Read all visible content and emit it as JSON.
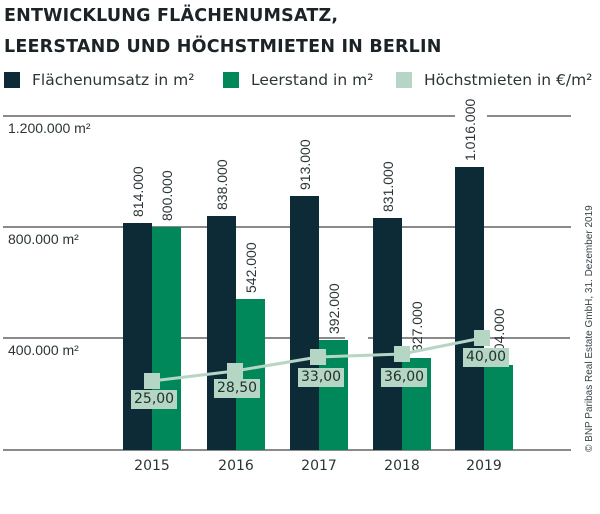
{
  "title": {
    "line1": "ENTWICKLUNG FLÄCHENUMSATZ,",
    "line2": "LEERSTAND UND HÖCHSTMIETEN IN BERLIN"
  },
  "legend": [
    {
      "label": "Flächenumsatz in m²",
      "color": "#0d2b36",
      "shape": "square"
    },
    {
      "label": "Leerstand in m²",
      "color": "#00875a",
      "shape": "square"
    },
    {
      "label": "Höchstmieten in €/m²",
      "color": "#b5d6c4",
      "shape": "square"
    }
  ],
  "y_axis": {
    "ticks": [
      {
        "value": 1200000,
        "label": "1.200.000 m²"
      },
      {
        "value": 800000,
        "label": "800.000 m²"
      },
      {
        "value": 400000,
        "label": "400.000 m²"
      },
      {
        "value": 0,
        "label": ""
      }
    ]
  },
  "credit": "© BNP Paribas Real Estate GmbH, 31. Dezember 2019",
  "colors": {
    "flaechenumsatz": "#0d2b36",
    "leerstand": "#00875a",
    "hoechstmieten": "#b5d6c4",
    "grid": "#8a8a8a",
    "text": "#2b3538"
  },
  "chart_data": {
    "type": "bar",
    "title": "Entwicklung Flächenumsatz, Leerstand und Höchstmieten in Berlin",
    "categories": [
      "2015",
      "2016",
      "2017",
      "2018",
      "2019"
    ],
    "series": [
      {
        "name": "Flächenumsatz in m²",
        "type": "bar",
        "values": [
          814000,
          838000,
          913000,
          831000,
          1016000
        ],
        "labels": [
          "814.000",
          "838.000",
          "913.000",
          "831.000",
          "1.016.000"
        ]
      },
      {
        "name": "Leerstand in m²",
        "type": "bar",
        "values": [
          800000,
          542000,
          392000,
          327000,
          304000
        ],
        "labels": [
          "800.000",
          "542.000",
          "392.000",
          "327.000",
          "304.000"
        ]
      },
      {
        "name": "Höchstmieten in €/m²",
        "type": "line",
        "values": [
          25.0,
          28.5,
          33.0,
          36.0,
          40.0
        ],
        "labels": [
          "25,00",
          "28,50",
          "33,00",
          "36,00",
          "40,00"
        ]
      }
    ],
    "xlabel": "",
    "ylabel": "m²",
    "ylim": [
      0,
      1200000
    ],
    "grid": true,
    "legend_position": "top"
  }
}
